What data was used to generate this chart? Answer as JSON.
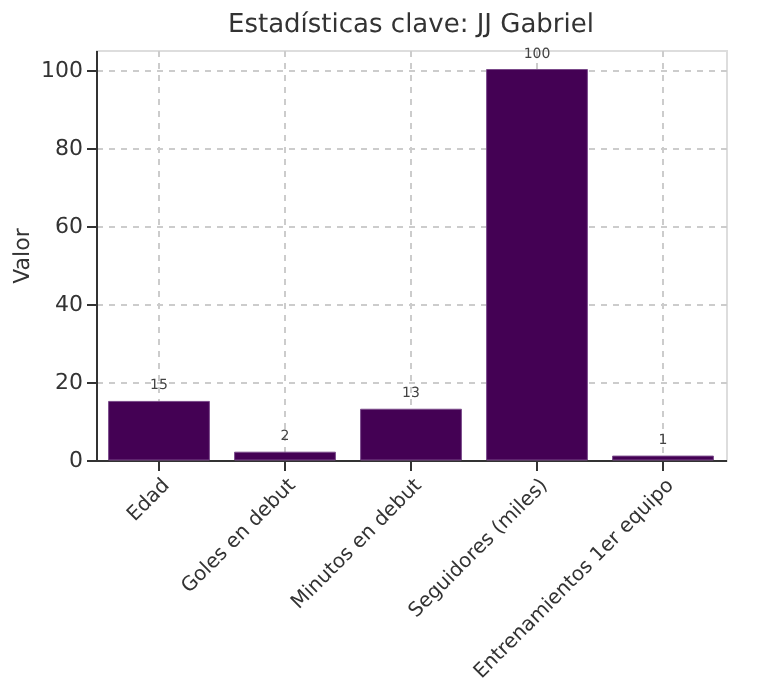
{
  "chart_data": {
    "type": "bar",
    "title": "Estadísticas clave: JJ Gabriel",
    "ylabel": "Valor",
    "categories": [
      "Edad",
      "Goles en debut",
      "Minutos en debut",
      "Seguidores (miles)",
      "Entrenamientos 1er equipo"
    ],
    "values": [
      15,
      2,
      13,
      100,
      1
    ],
    "color": "#440154",
    "ylim": [
      0,
      105
    ],
    "yticks": [
      0,
      20,
      40,
      60,
      80,
      100
    ],
    "grid": true,
    "data_labels": true
  }
}
